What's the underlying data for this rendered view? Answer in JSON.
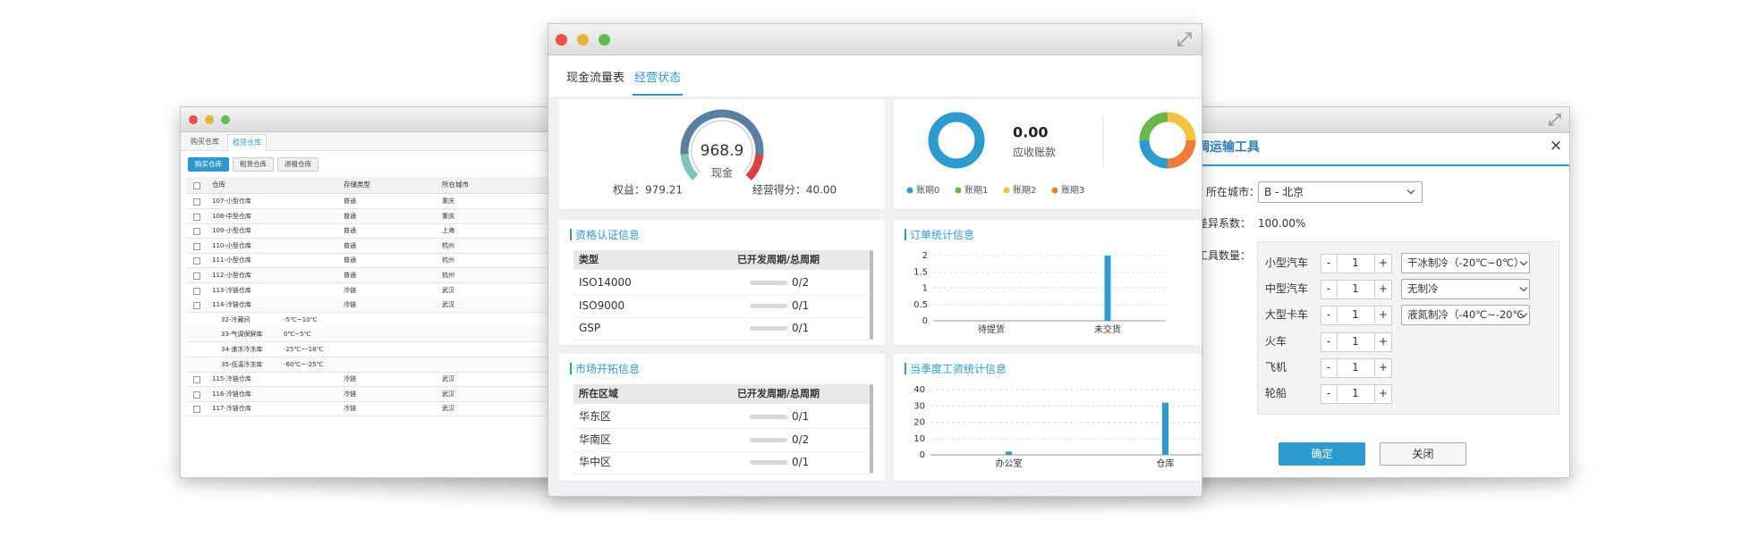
{
  "left_window": {
    "tabs": [
      "购买仓库",
      "租赁仓库"
    ],
    "buttons": [
      "购买仓库",
      "租赁仓库",
      "退租仓库"
    ],
    "headers": [
      "仓库",
      "存储类型",
      "所在城市"
    ],
    "rows": [
      {
        "name": "107-小型仓库",
        "type": "普通",
        "city": "重庆"
      },
      {
        "name": "108-中型仓库",
        "type": "普通",
        "city": "重庆"
      },
      {
        "name": "109-小型仓库",
        "type": "普通",
        "city": "上海"
      },
      {
        "name": "110-小型仓库",
        "type": "普通",
        "city": "杭州"
      },
      {
        "name": "111-小型仓库",
        "type": "普通",
        "city": "杭州"
      },
      {
        "name": "112-小型仓库",
        "type": "普通",
        "city": "杭州"
      },
      {
        "name": "113-冷链仓库",
        "type": "冷链",
        "city": "武汉"
      },
      {
        "name": "114-冷链仓库",
        "type": "冷链",
        "city": "武汉"
      },
      {
        "name": "32-冷藏间",
        "temp": "-5℃~10℃"
      },
      {
        "name": "33-气调保鲜库",
        "temp": "0℃~5℃"
      },
      {
        "name": "34-速冻冷冻库",
        "temp": "-25℃~-18℃"
      },
      {
        "name": "35-低温冷冻库",
        "temp": "-60℃~-25℃"
      },
      {
        "name": "115-冷链仓库",
        "type": "冷链",
        "city": "武汉"
      },
      {
        "name": "116-冷链仓库",
        "type": "冷链",
        "city": "武汉"
      },
      {
        "name": "117-冷链仓库",
        "type": "冷链",
        "city": "武汉"
      }
    ]
  },
  "center_window": {
    "tabs": [
      "现金流量表",
      "经营状态"
    ],
    "gauge_value": "968.9",
    "gauge_label": "现金",
    "equity": "权益：979.21",
    "score": "经营得分：40.00",
    "receivable_value": "0.00",
    "receivable_label": "应收账款",
    "legend": [
      "账期0",
      "账期1",
      "账期2",
      "账期3"
    ],
    "legend_colors": [
      "#2e9bd0",
      "#6bb84a",
      "#f5c342",
      "#f07a3a"
    ],
    "qual_panel": {
      "title": "资格认证信息",
      "headers": [
        "类型",
        "已开发周期/总周期"
      ],
      "rows": [
        [
          "ISO14000",
          "0/2"
        ],
        [
          "ISO9000",
          "0/1"
        ],
        [
          "GSP",
          "0/1"
        ]
      ]
    },
    "market_panel": {
      "title": "市场开拓信息",
      "headers": [
        "所在区域",
        "已开发周期/总周期"
      ],
      "rows": [
        [
          "华东区",
          "0/1"
        ],
        [
          "华南区",
          "0/2"
        ],
        [
          "华中区",
          "0/1"
        ]
      ]
    }
  },
  "chart_data": [
    {
      "type": "bar",
      "title": "订单统计信息",
      "categories": [
        "待提货",
        "未交货"
      ],
      "values": [
        0,
        2
      ],
      "color": "#2e9bd0",
      "ylim": [
        0,
        2
      ],
      "yticks": [
        0,
        0.5,
        1,
        1.5,
        2
      ],
      "grid": true
    },
    {
      "type": "bar",
      "title": "当季度工资统计信息",
      "categories": [
        "办公室",
        "仓库"
      ],
      "values": [
        2,
        32
      ],
      "color": "#2e9bd0",
      "ylim": [
        0,
        40
      ],
      "yticks": [
        0,
        10,
        20,
        30,
        40
      ],
      "grid": true
    }
  ],
  "right_window": {
    "title": "调运输工具",
    "close": "×",
    "city_label": "所在城市：",
    "city": "B - 北京",
    "coef_label": "差异系数：",
    "coef": "100.00%",
    "qty_label": "工具数量：",
    "stepper": [
      "-",
      "+"
    ],
    "vehicles": [
      {
        "name": "小型汽车",
        "qty": 1,
        "cooling": "干冰制冷（-20℃~0℃）"
      },
      {
        "name": "中型汽车",
        "qty": 1,
        "cooling": "无制冷"
      },
      {
        "name": "大型卡车",
        "qty": 1,
        "cooling": "液氮制冷（-40℃~-20℃"
      },
      {
        "name": "火车",
        "qty": 1
      },
      {
        "name": "飞机",
        "qty": 1
      },
      {
        "name": "轮船",
        "qty": 1
      }
    ],
    "confirm": "确定",
    "close_button": "关闭"
  }
}
